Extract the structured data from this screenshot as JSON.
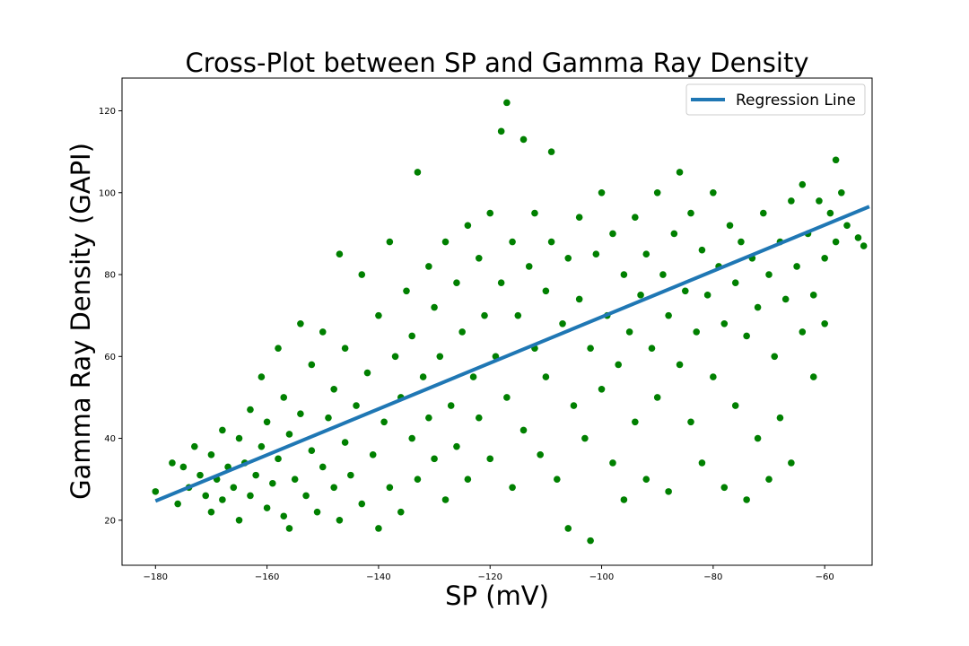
{
  "chart_data": {
    "type": "scatter",
    "title": "Cross-Plot between SP and Gamma Ray Density",
    "xlabel": "SP (mV)",
    "ylabel": "Gamma Ray Density (GAPI)",
    "xlim": [
      -186,
      -51.5
    ],
    "ylim": [
      9,
      128
    ],
    "xticks": [
      -180,
      -160,
      -140,
      -120,
      -100,
      -80,
      -60
    ],
    "xtick_labels": [
      "−180",
      "−160",
      "−140",
      "−120",
      "−100",
      "−80",
      "−60"
    ],
    "yticks": [
      20,
      40,
      60,
      80,
      100,
      120
    ],
    "ytick_labels": [
      "20",
      "40",
      "60",
      "80",
      "100",
      "120"
    ],
    "grid": false,
    "legend": {
      "position": "top-right",
      "entries": [
        "Regression Line"
      ]
    },
    "series": [
      {
        "type": "scatter",
        "color": "#008000",
        "points": [
          [
            -180,
            27
          ],
          [
            -177,
            34
          ],
          [
            -176,
            24
          ],
          [
            -175,
            33
          ],
          [
            -174,
            28
          ],
          [
            -173,
            38
          ],
          [
            -172,
            31
          ],
          [
            -171,
            26
          ],
          [
            -170,
            36
          ],
          [
            -170,
            22
          ],
          [
            -169,
            30
          ],
          [
            -168,
            42
          ],
          [
            -168,
            25
          ],
          [
            -167,
            33
          ],
          [
            -166,
            28
          ],
          [
            -165,
            40
          ],
          [
            -165,
            20
          ],
          [
            -164,
            34
          ],
          [
            -163,
            47
          ],
          [
            -163,
            26
          ],
          [
            -162,
            31
          ],
          [
            -161,
            55
          ],
          [
            -161,
            38
          ],
          [
            -160,
            23
          ],
          [
            -160,
            44
          ],
          [
            -159,
            29
          ],
          [
            -158,
            62
          ],
          [
            -158,
            35
          ],
          [
            -157,
            50
          ],
          [
            -157,
            21
          ],
          [
            -156,
            41
          ],
          [
            -156,
            18
          ],
          [
            -155,
            30
          ],
          [
            -154,
            68
          ],
          [
            -154,
            46
          ],
          [
            -153,
            26
          ],
          [
            -152,
            37
          ],
          [
            -152,
            58
          ],
          [
            -151,
            22
          ],
          [
            -150,
            33
          ],
          [
            -150,
            66
          ],
          [
            -149,
            45
          ],
          [
            -148,
            28
          ],
          [
            -148,
            52
          ],
          [
            -147,
            85
          ],
          [
            -147,
            20
          ],
          [
            -146,
            39
          ],
          [
            -146,
            62
          ],
          [
            -145,
            31
          ],
          [
            -144,
            48
          ],
          [
            -143,
            24
          ],
          [
            -143,
            80
          ],
          [
            -142,
            56
          ],
          [
            -141,
            36
          ],
          [
            -140,
            18
          ],
          [
            -140,
            70
          ],
          [
            -139,
            44
          ],
          [
            -138,
            88
          ],
          [
            -138,
            28
          ],
          [
            -137,
            60
          ],
          [
            -136,
            50
          ],
          [
            -136,
            22
          ],
          [
            -135,
            76
          ],
          [
            -134,
            40
          ],
          [
            -134,
            65
          ],
          [
            -133,
            30
          ],
          [
            -133,
            105
          ],
          [
            -132,
            55
          ],
          [
            -131,
            82
          ],
          [
            -131,
            45
          ],
          [
            -130,
            35
          ],
          [
            -130,
            72
          ],
          [
            -129,
            60
          ],
          [
            -128,
            88
          ],
          [
            -128,
            25
          ],
          [
            -127,
            48
          ],
          [
            -126,
            78
          ],
          [
            -126,
            38
          ],
          [
            -125,
            66
          ],
          [
            -124,
            92
          ],
          [
            -124,
            30
          ],
          [
            -123,
            55
          ],
          [
            -122,
            84
          ],
          [
            -122,
            45
          ],
          [
            -121,
            70
          ],
          [
            -120,
            35
          ],
          [
            -120,
            95
          ],
          [
            -119,
            60
          ],
          [
            -118,
            115
          ],
          [
            -118,
            78
          ],
          [
            -117,
            122
          ],
          [
            -117,
            50
          ],
          [
            -116,
            88
          ],
          [
            -116,
            28
          ],
          [
            -115,
            70
          ],
          [
            -114,
            113
          ],
          [
            -114,
            42
          ],
          [
            -113,
            82
          ],
          [
            -112,
            62
          ],
          [
            -112,
            95
          ],
          [
            -111,
            36
          ],
          [
            -110,
            76
          ],
          [
            -110,
            55
          ],
          [
            -109,
            110
          ],
          [
            -109,
            88
          ],
          [
            -108,
            30
          ],
          [
            -107,
            68
          ],
          [
            -106,
            84
          ],
          [
            -106,
            18
          ],
          [
            -105,
            48
          ],
          [
            -104,
            74
          ],
          [
            -104,
            94
          ],
          [
            -103,
            40
          ],
          [
            -102,
            62
          ],
          [
            -102,
            15
          ],
          [
            -101,
            85
          ],
          [
            -100,
            52
          ],
          [
            -100,
            100
          ],
          [
            -99,
            70
          ],
          [
            -98,
            34
          ],
          [
            -98,
            90
          ],
          [
            -97,
            58
          ],
          [
            -96,
            80
          ],
          [
            -96,
            25
          ],
          [
            -95,
            66
          ],
          [
            -94,
            94
          ],
          [
            -94,
            44
          ],
          [
            -93,
            75
          ],
          [
            -92,
            85
          ],
          [
            -92,
            30
          ],
          [
            -91,
            62
          ],
          [
            -90,
            100
          ],
          [
            -90,
            50
          ],
          [
            -89,
            80
          ],
          [
            -88,
            70
          ],
          [
            -88,
            27
          ],
          [
            -87,
            90
          ],
          [
            -86,
            58
          ],
          [
            -86,
            105
          ],
          [
            -85,
            76
          ],
          [
            -84,
            44
          ],
          [
            -84,
            95
          ],
          [
            -83,
            66
          ],
          [
            -82,
            86
          ],
          [
            -82,
            34
          ],
          [
            -81,
            75
          ],
          [
            -80,
            100
          ],
          [
            -80,
            55
          ],
          [
            -79,
            82
          ],
          [
            -78,
            68
          ],
          [
            -78,
            28
          ],
          [
            -77,
            92
          ],
          [
            -76,
            78
          ],
          [
            -76,
            48
          ],
          [
            -75,
            88
          ],
          [
            -74,
            65
          ],
          [
            -74,
            25
          ],
          [
            -73,
            84
          ],
          [
            -72,
            72
          ],
          [
            -72,
            40
          ],
          [
            -71,
            95
          ],
          [
            -70,
            80
          ],
          [
            -70,
            30
          ],
          [
            -69,
            60
          ],
          [
            -68,
            88
          ],
          [
            -68,
            45
          ],
          [
            -67,
            74
          ],
          [
            -66,
            98
          ],
          [
            -66,
            34
          ],
          [
            -65,
            82
          ],
          [
            -64,
            66
          ],
          [
            -64,
            102
          ],
          [
            -63,
            90
          ],
          [
            -62,
            75
          ],
          [
            -62,
            55
          ],
          [
            -61,
            98
          ],
          [
            -60,
            84
          ],
          [
            -60,
            68
          ],
          [
            -59,
            95
          ],
          [
            -58,
            108
          ],
          [
            -58,
            88
          ],
          [
            -57,
            100
          ],
          [
            -56,
            92
          ],
          [
            -54,
            89
          ],
          [
            -53,
            87
          ]
        ]
      },
      {
        "type": "line",
        "name": "Regression Line",
        "color": "#1f77b4",
        "x": [
          -180,
          -52
        ],
        "y": [
          24.7,
          96.6
        ]
      }
    ]
  }
}
